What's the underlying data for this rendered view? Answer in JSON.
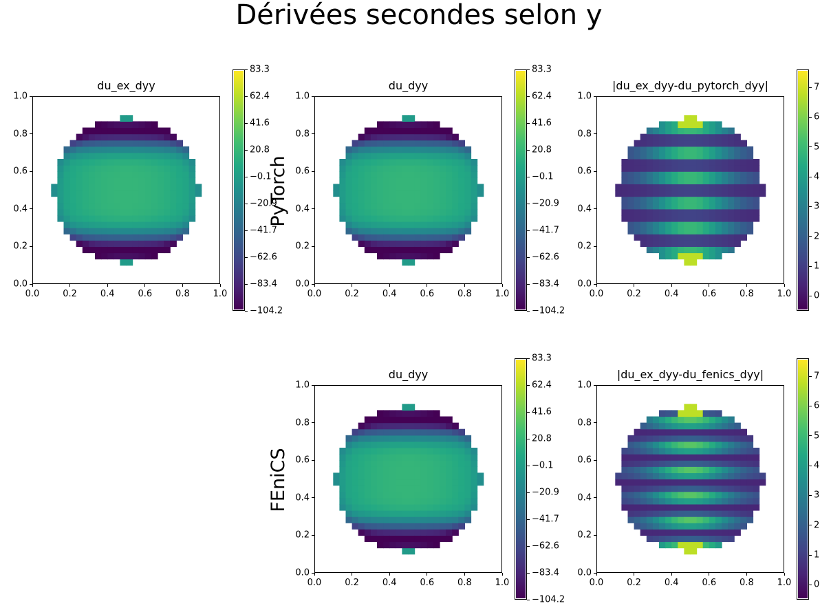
{
  "figure": {
    "title": "Dérivées secondes selon y",
    "row_labels": [
      "PyTorch",
      "FEniCS"
    ]
  },
  "chart_data": [
    {
      "type": "heatmap",
      "title": "du_ex_dyy",
      "row": "PyTorch",
      "field": "circular domain (radius ~0.37, center 0.5,0.5), second y-derivative: low at top/bottom edges, high in center, yellow rims at far top and bottom",
      "xlim": [
        0,
        1
      ],
      "ylim": [
        0,
        1
      ],
      "xticks": [
        "0.0",
        "0.2",
        "0.4",
        "0.6",
        "0.8",
        "1.0"
      ],
      "yticks": [
        "0.0",
        "0.2",
        "0.4",
        "0.6",
        "0.8",
        "1.0"
      ],
      "colorbar": {
        "colormap": "viridis",
        "range": [
          -104.2,
          83.3
        ],
        "ticks": [
          "83.3",
          "62.4",
          "41.6",
          "20.8",
          "−0.1",
          "−20.9",
          "−41.7",
          "−62.6",
          "−83.4",
          "−104.2"
        ]
      }
    },
    {
      "type": "heatmap",
      "title": "du_dyy",
      "row": "PyTorch",
      "xlim": [
        0,
        1
      ],
      "ylim": [
        0,
        1
      ],
      "xticks": [
        "0.0",
        "0.2",
        "0.4",
        "0.6",
        "0.8",
        "1.0"
      ],
      "yticks": [
        "0.0",
        "0.2",
        "0.4",
        "0.6",
        "0.8",
        "1.0"
      ],
      "colorbar": {
        "colormap": "viridis",
        "range": [
          -104.2,
          83.3
        ],
        "ticks": [
          "83.3",
          "62.4",
          "41.6",
          "20.8",
          "−0.1",
          "−20.9",
          "−41.7",
          "−62.6",
          "−83.4",
          "−104.2"
        ]
      }
    },
    {
      "type": "heatmap",
      "title": "|du_ex_dyy-du_pytorch_dyy|",
      "row": "PyTorch",
      "xlim": [
        0,
        1
      ],
      "ylim": [
        0,
        1
      ],
      "xticks": [
        "0.0",
        "0.2",
        "0.4",
        "0.6",
        "0.8",
        "1.0"
      ],
      "yticks": [
        "0.0",
        "0.2",
        "0.4",
        "0.6",
        "0.8",
        "1.0"
      ],
      "colorbar": {
        "colormap": "viridis",
        "range": [
          -0.5,
          7.6
        ],
        "ticks": [
          "0",
          "1",
          "2",
          "3",
          "4",
          "5",
          "6",
          "7"
        ]
      }
    },
    {
      "type": "heatmap",
      "title": "du_dyy",
      "row": "FEniCS",
      "xlim": [
        0,
        1
      ],
      "ylim": [
        0,
        1
      ],
      "xticks": [
        "0.0",
        "0.2",
        "0.4",
        "0.6",
        "0.8",
        "1.0"
      ],
      "yticks": [
        "0.0",
        "0.2",
        "0.4",
        "0.6",
        "0.8",
        "1.0"
      ],
      "colorbar": {
        "colormap": "viridis",
        "range": [
          -104.2,
          83.3
        ],
        "ticks": [
          "83.3",
          "62.4",
          "41.6",
          "20.8",
          "−0.1",
          "−20.9",
          "−41.7",
          "−62.6",
          "−83.4",
          "−104.2"
        ]
      }
    },
    {
      "type": "heatmap",
      "title": "|du_ex_dyy-du_fenics_dyy|",
      "row": "FEniCS",
      "xlim": [
        0,
        1
      ],
      "ylim": [
        0,
        1
      ],
      "xticks": [
        "0.0",
        "0.2",
        "0.4",
        "0.6",
        "0.8",
        "1.0"
      ],
      "yticks": [
        "0.0",
        "0.2",
        "0.4",
        "0.6",
        "0.8",
        "1.0"
      ],
      "colorbar": {
        "colormap": "viridis",
        "range": [
          -0.5,
          7.6
        ],
        "ticks": [
          "0",
          "1",
          "2",
          "3",
          "4",
          "5",
          "6",
          "7"
        ]
      }
    }
  ]
}
